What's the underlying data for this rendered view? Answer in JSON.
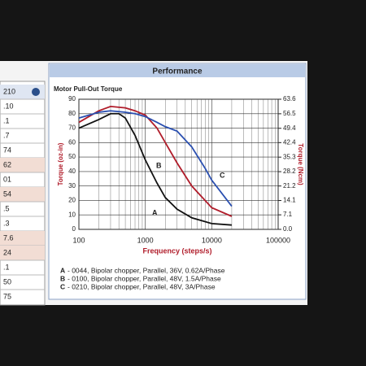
{
  "header": {
    "title": "Performance",
    "tab": "210"
  },
  "left_table": {
    "rows": [
      ".10",
      ".1",
      ".7",
      "74",
      "62",
      "01",
      "54",
      ".5",
      ".3",
      "7.6",
      "24",
      ".1",
      "50",
      "75"
    ]
  },
  "chart_data": {
    "type": "line",
    "title": "Motor Pull-Out Torque",
    "x_label": "Frequency (steps/s)",
    "y_label": "Torque (oz-in)",
    "y2_label": "Torque (Ncm)",
    "log_x": true,
    "grid": true,
    "xlim": [
      100,
      100000
    ],
    "xticks": [
      100,
      1000,
      10000,
      100000
    ],
    "ylim": [
      0,
      90
    ],
    "yticks": [
      0,
      10,
      20,
      30,
      40,
      50,
      60,
      70,
      80,
      90
    ],
    "y2lim": [
      0,
      63.6
    ],
    "y2ticks": [
      {
        "value": 0,
        "label": "0.0"
      },
      7.1,
      14.1,
      21.2,
      28.2,
      35.3,
      42.4,
      49.4,
      56.5,
      63.6
    ],
    "series": [
      {
        "label": "A",
        "name": "- 0044, Bipolar chopper, Parallel, 36V, 0.62A/Phase",
        "color": "#111111",
        "x": [
          100,
          200,
          300,
          400,
          500,
          700,
          1000,
          1500,
          2000,
          3000,
          5000,
          10000,
          20000
        ],
        "values": [
          70,
          76,
          80,
          80,
          77,
          65,
          48,
          32,
          22,
          14,
          8,
          4,
          3
        ]
      },
      {
        "label": "B",
        "name": "- 0100, Bipolar chopper, Parallel, 48V, 1.5A/Phase",
        "color": "#b01c2a",
        "x": [
          100,
          200,
          300,
          500,
          700,
          1000,
          1500,
          2000,
          3000,
          5000,
          10000,
          20000
        ],
        "values": [
          74,
          82,
          85,
          84,
          82,
          79,
          70,
          60,
          46,
          30,
          15,
          9
        ]
      },
      {
        "label": "C",
        "name": "- 0210, Bipolar chopper, Parallel, 48V, 3A/Phase",
        "color": "#2a4fb0",
        "x": [
          100,
          200,
          300,
          500,
          700,
          1000,
          1500,
          2000,
          3000,
          5000,
          8000,
          10000,
          20000
        ],
        "values": [
          77,
          81,
          82,
          81,
          80,
          78,
          74,
          71,
          68,
          57,
          42,
          34,
          16
        ]
      }
    ]
  }
}
